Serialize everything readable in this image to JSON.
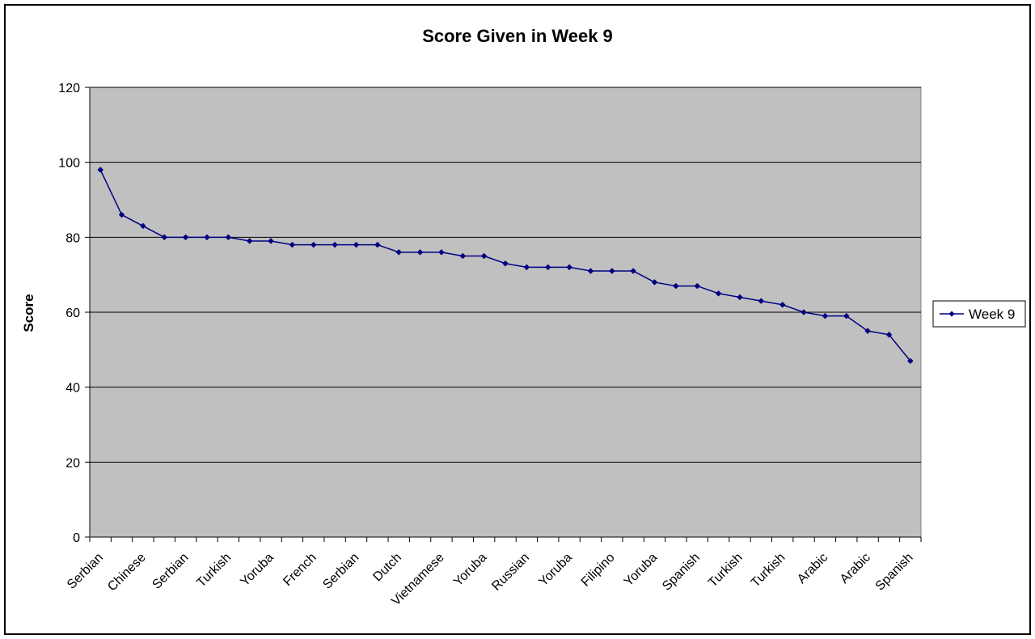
{
  "chart_data": {
    "type": "line",
    "title": "Score Given in Week 9",
    "xlabel": "",
    "ylabel": "Score",
    "ylim": [
      0,
      120
    ],
    "yticks": [
      0,
      20,
      40,
      60,
      80,
      100,
      120
    ],
    "grid": true,
    "legend_position": "right",
    "colors": {
      "series": "#000080",
      "plot_background": "#c0c0c0",
      "gridline": "#000000"
    },
    "categories": [
      "Serbian",
      "",
      "Chinese",
      "",
      "Serbian",
      "",
      "Turkish",
      "",
      "Yoruba",
      "",
      "French",
      "",
      "Serbian",
      "",
      "Dutch",
      "",
      "Vietnamese",
      "",
      "Yoruba",
      "",
      "Russian",
      "",
      "Yoruba",
      "",
      "Filipino",
      "",
      "Yoruba",
      "",
      "Spanish",
      "",
      "Turkish",
      "",
      "Turkish",
      "",
      "Arabic",
      "",
      "Arabic",
      "",
      "Spanish"
    ],
    "series": [
      {
        "name": "Week 9",
        "values": [
          98,
          86,
          83,
          80,
          80,
          80,
          80,
          79,
          79,
          78,
          78,
          78,
          78,
          78,
          76,
          76,
          76,
          75,
          75,
          73,
          72,
          72,
          72,
          71,
          71,
          71,
          68,
          67,
          67,
          65,
          64,
          63,
          62,
          60,
          59,
          59,
          55,
          54,
          47
        ]
      }
    ]
  }
}
